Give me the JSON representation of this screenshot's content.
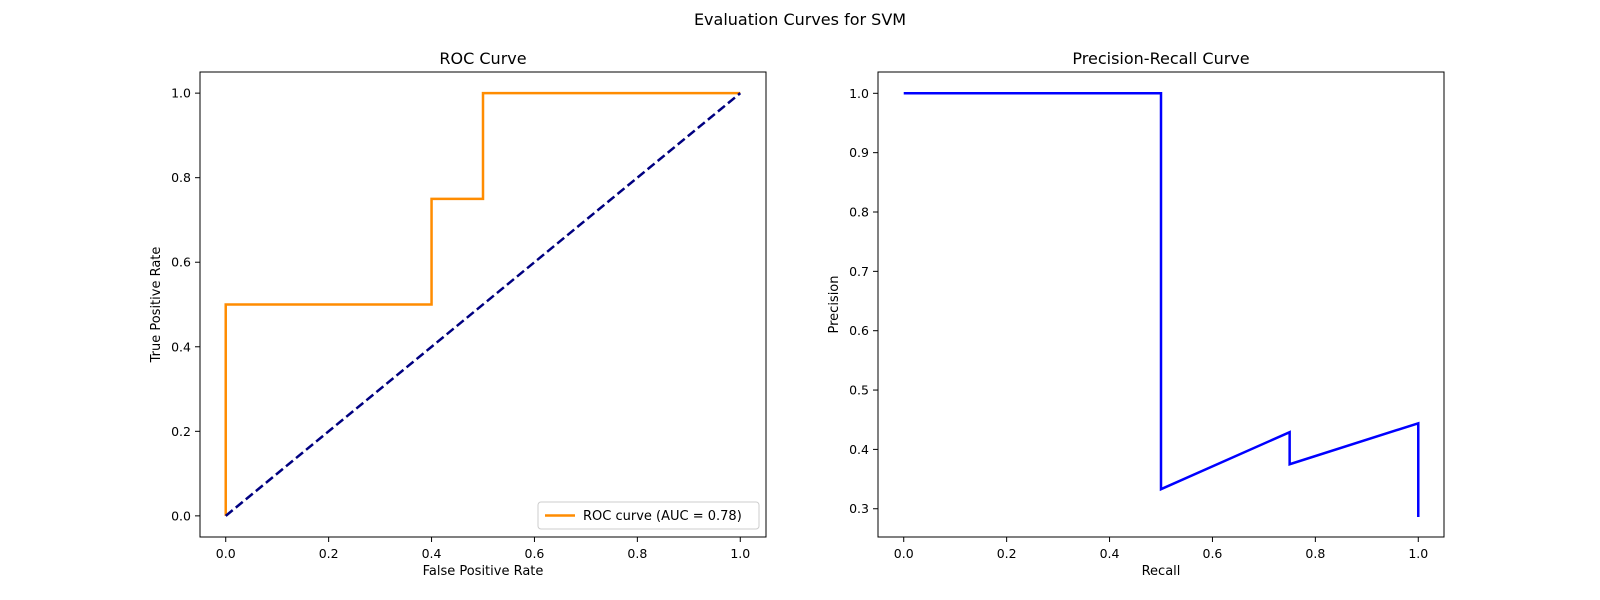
{
  "figure": {
    "suptitle": "Evaluation Curves for SVM"
  },
  "chart_data": [
    {
      "type": "line",
      "title": "ROC Curve",
      "xlabel": "False Positive Rate",
      "ylabel": "True Positive Rate",
      "xlim": [
        -0.05,
        1.05
      ],
      "ylim": [
        -0.05,
        1.05
      ],
      "xticks": [
        "0.0",
        "0.2",
        "0.4",
        "0.6",
        "0.8",
        "1.0"
      ],
      "yticks": [
        "0.0",
        "0.2",
        "0.4",
        "0.6",
        "0.8",
        "1.0"
      ],
      "grid": false,
      "legend_position": "lower-right",
      "series": [
        {
          "name": "ROC curve (AUC = 0.78)",
          "color": "#ff8c00",
          "style": "solid",
          "x": [
            0.0,
            0.0,
            0.0,
            0.4,
            0.4,
            0.5,
            0.5,
            1.0
          ],
          "y": [
            0.0,
            0.25,
            0.5,
            0.5,
            0.75,
            0.75,
            1.0,
            1.0
          ]
        },
        {
          "color": "#000080",
          "style": "dashed",
          "x": [
            0.0,
            1.0
          ],
          "y": [
            0.0,
            1.0
          ]
        }
      ]
    },
    {
      "type": "line",
      "title": "Precision-Recall Curve",
      "xlabel": "Recall",
      "ylabel": "Precision",
      "xlim": [
        -0.05,
        1.05
      ],
      "ylim": [
        0.2524,
        1.0359
      ],
      "xticks": [
        "0.0",
        "0.2",
        "0.4",
        "0.6",
        "0.8",
        "1.0"
      ],
      "yticks": [
        "0.3",
        "0.4",
        "0.5",
        "0.6",
        "0.7",
        "0.8",
        "0.9",
        "1.0"
      ],
      "grid": false,
      "series": [
        {
          "color": "#0000ff",
          "style": "solid",
          "x": [
            0.0,
            0.5,
            0.5,
            0.75,
            0.75,
            1.0,
            1.0
          ],
          "y": [
            1.0,
            1.0,
            0.333,
            0.429,
            0.375,
            0.444,
            0.286
          ]
        }
      ]
    }
  ]
}
